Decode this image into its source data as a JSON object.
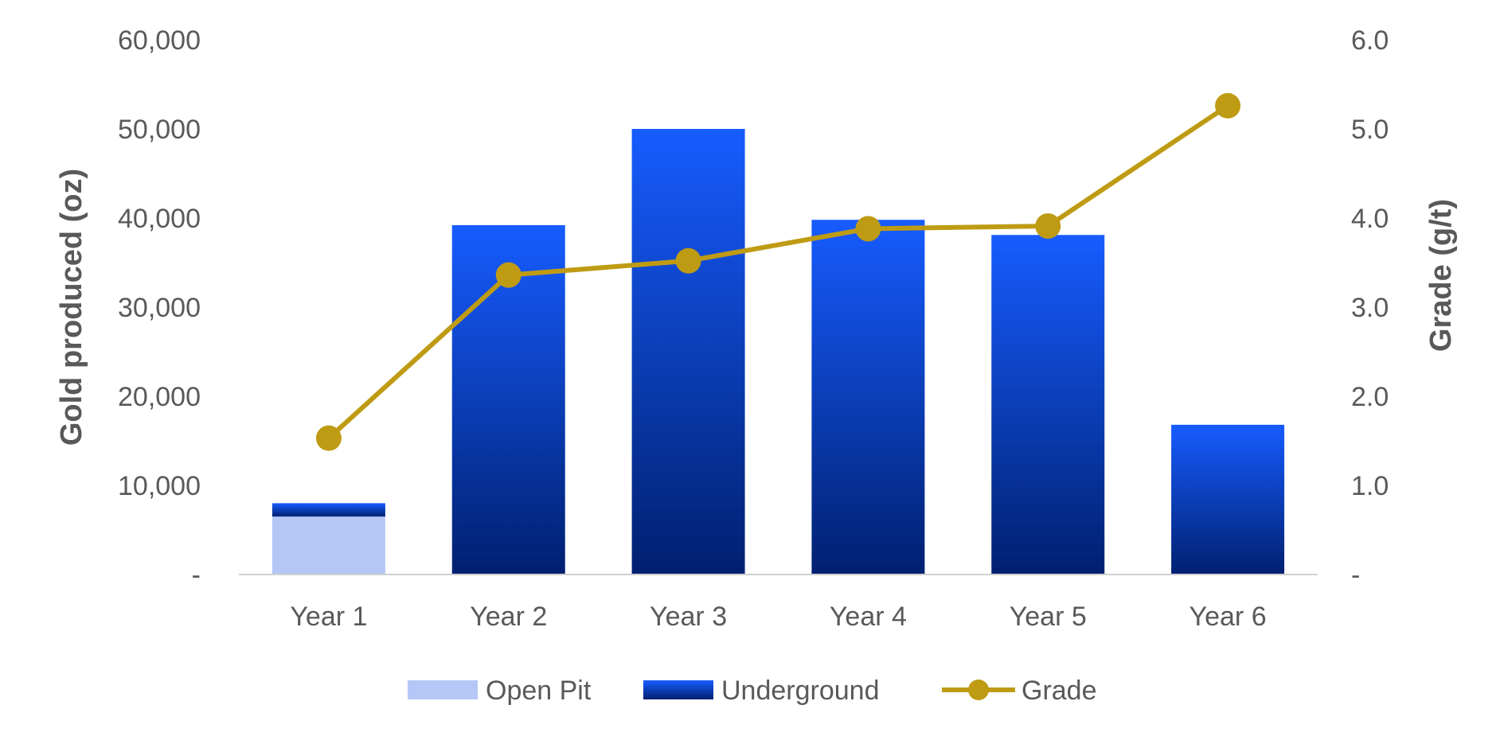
{
  "chart_data": {
    "type": "bar",
    "stacked": true,
    "categories": [
      "Year 1",
      "Year 2",
      "Year 3",
      "Year 4",
      "Year 5",
      "Year 6"
    ],
    "series": [
      {
        "name": "Open Pit",
        "kind": "bar",
        "axis": "left",
        "color": "#b4c7f7",
        "values": [
          6500,
          0,
          0,
          0,
          0,
          0
        ]
      },
      {
        "name": "Underground",
        "kind": "bar",
        "axis": "left",
        "color_top": "#175cff",
        "color_bottom": "#002070",
        "values": [
          1500,
          39200,
          50000,
          39800,
          38100,
          16800
        ]
      },
      {
        "name": "Grade",
        "kind": "line",
        "axis": "right",
        "color": "#bf9b14",
        "marker": "circle",
        "values": [
          1.53,
          3.36,
          3.52,
          3.88,
          3.91,
          5.26
        ]
      }
    ],
    "ylabel": "Gold produced (oz)",
    "y2label": "Grade (g/t)",
    "ylim": [
      0,
      60000
    ],
    "y2lim": [
      0,
      6.0
    ],
    "yticks": [
      "-",
      "10,000",
      "20,000",
      "30,000",
      "40,000",
      "50,000",
      "60,000"
    ],
    "y2ticks": [
      "-",
      "1.0",
      "2.0",
      "3.0",
      "4.0",
      "5.0",
      "6.0"
    ],
    "grid": false,
    "legend_position": "bottom"
  }
}
